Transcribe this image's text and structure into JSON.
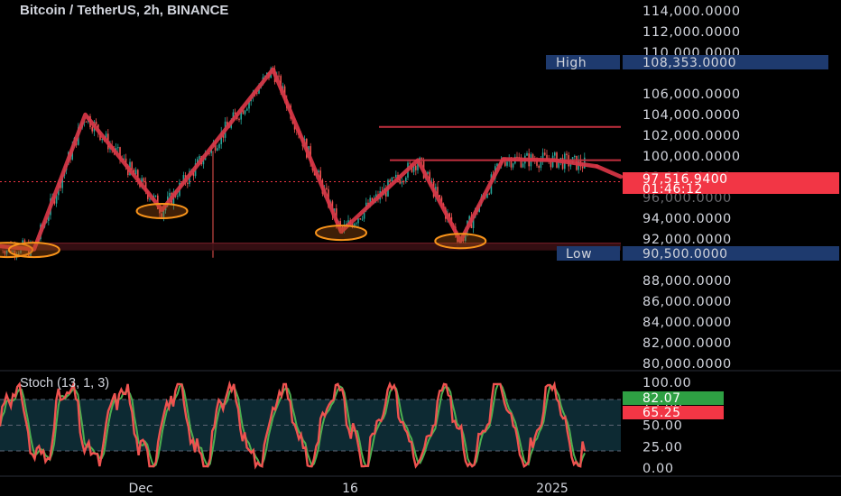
{
  "header": {
    "title": "Bitcoin / TetherUS, 2h, BINANCE"
  },
  "colors": {
    "background": "#000000",
    "bull": "#26a69a",
    "bear": "#ef5350",
    "pattern_line": "#d93646",
    "swing_circle": "#f7931a",
    "label_bg": "#1e3a6e",
    "price_tag": "#f23645",
    "stoch_k": "#ef5350",
    "stoch_d": "#4caf50"
  },
  "price_axis": {
    "ticks": [
      "114,000.0000",
      "112,000.0000",
      "110,000.0000",
      "106,000.0000",
      "104,000.0000",
      "102,000.0000",
      "100,000.0000",
      "94,000.0000",
      "92,000.0000",
      "88,000.0000",
      "86,000.0000",
      "84,000.0000",
      "82,000.0000",
      "80,000.0000"
    ],
    "high_label": "High",
    "high_value": "108,353.0000",
    "low_label": "Low",
    "low_value": "90,500.0000",
    "last_price": "97,516.9400",
    "countdown": "01:46:12",
    "hidden_tick": "98,000.0000",
    "hidden_tick2": "96,000.0000"
  },
  "time_axis": {
    "labels": [
      "Dec",
      "16",
      "2025"
    ]
  },
  "stoch": {
    "title": "Stoch (13, 1, 3)",
    "ticks": [
      "100.00",
      "75.00",
      "50.00",
      "25.00",
      "0.00"
    ],
    "k_value": "65.25",
    "d_value": "82.07"
  },
  "chart_data": {
    "type": "line",
    "title": "Bitcoin / TetherUS, 2h, BINANCE",
    "y_axis": {
      "min": 79500,
      "max": 114500,
      "unit": "USDT"
    },
    "x_axis": {
      "labels": [
        "Dec",
        "16",
        "2025"
      ]
    },
    "pattern_points": {
      "comment_free": true,
      "x_index": [
        0,
        4,
        10,
        19,
        32,
        40,
        49,
        54,
        59,
        65,
        70
      ],
      "y": [
        91300,
        91000,
        104000,
        94800,
        108350,
        92700,
        99600,
        91800,
        99700,
        99600,
        99000
      ]
    },
    "swing_lows": [
      {
        "x_index": 0,
        "y": 90950
      },
      {
        "x_index": 4,
        "y": 90950
      },
      {
        "x_index": 19,
        "y": 94700
      },
      {
        "x_index": 40,
        "y": 92600
      },
      {
        "x_index": 54,
        "y": 91800
      }
    ],
    "resistance_levels": [
      102800,
      99600
    ],
    "support_zone": [
      90900,
      91600
    ],
    "high": 108353.0,
    "low": 90500.0,
    "last_price": 97516.94,
    "stochastic": {
      "name": "Stoch (13, 1, 3)",
      "ylim": [
        0,
        100
      ],
      "bands": [
        20,
        80
      ],
      "k_last": 65.25,
      "d_last": 82.07
    }
  }
}
